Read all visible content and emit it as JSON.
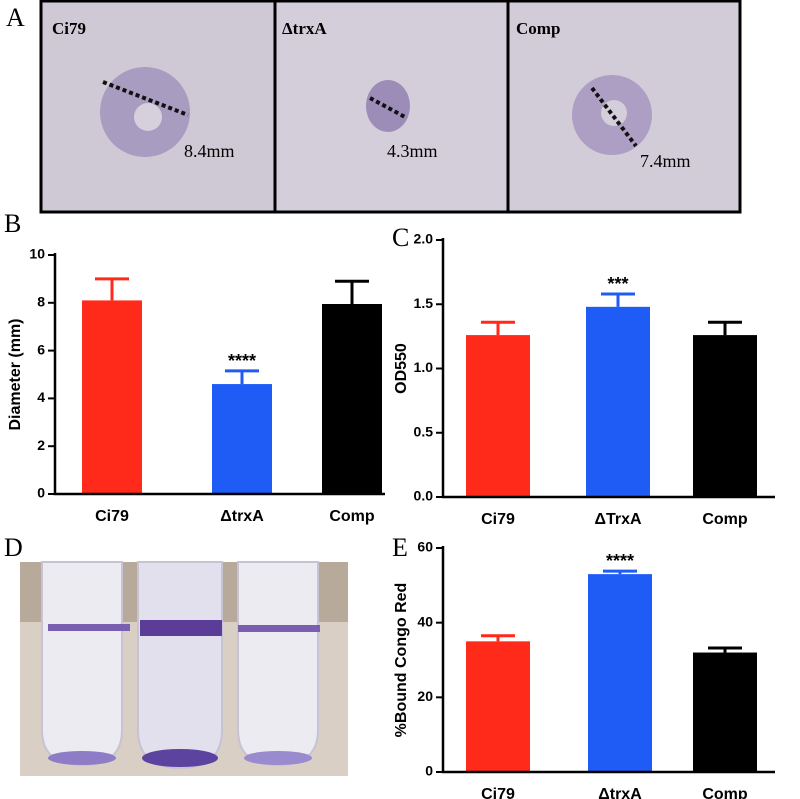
{
  "panel_a": {
    "label": "A",
    "images": [
      {
        "name": "Ci79",
        "measurement": "8.4mm"
      },
      {
        "name": "ΔtrxA",
        "measurement": "4.3mm"
      },
      {
        "name": "Comp",
        "measurement": "7.4mm"
      }
    ]
  },
  "panel_d": {
    "label": "D"
  },
  "chart_data": [
    {
      "type": "bar",
      "label": "B",
      "ylabel": "Diameter (mm)",
      "categories": [
        "Ci79",
        "ΔtrxA",
        "Comp"
      ],
      "values": [
        8.1,
        4.6,
        7.95
      ],
      "errors": [
        0.9,
        0.55,
        0.95
      ],
      "significance": [
        null,
        "****",
        null
      ],
      "colors": [
        "#ff2a1a",
        "#1f5cf5",
        "#000000"
      ],
      "ylim": [
        0,
        10
      ],
      "yticks": [
        0,
        2,
        4,
        6,
        8,
        10
      ]
    },
    {
      "type": "bar",
      "label": "C",
      "ylabel": "OD550",
      "categories": [
        "Ci79",
        "ΔTrxA",
        "Comp"
      ],
      "values": [
        1.26,
        1.48,
        1.26
      ],
      "errors": [
        0.1,
        0.1,
        0.1
      ],
      "significance": [
        null,
        "***",
        null
      ],
      "colors": [
        "#ff2a1a",
        "#1f5cf5",
        "#000000"
      ],
      "ylim": [
        0,
        2
      ],
      "yticks": [
        {
          "value": 0,
          "label": "0.0"
        },
        {
          "value": 0.5,
          "label": "0.5"
        },
        {
          "value": 1,
          "label": "1.0"
        },
        {
          "value": 1.5,
          "label": "1.5"
        },
        {
          "value": 2,
          "label": "2.0"
        }
      ]
    },
    {
      "type": "bar",
      "label": "E",
      "ylabel": "%Bound Congo Red",
      "categories": [
        "Ci79",
        "ΔtrxA",
        "Comp"
      ],
      "values": [
        35,
        53,
        32
      ],
      "errors": [
        1.5,
        0.8,
        1.2
      ],
      "significance": [
        null,
        "****",
        null
      ],
      "colors": [
        "#ff2a1a",
        "#1f5cf5",
        "#000000"
      ],
      "ylim": [
        0,
        60
      ],
      "yticks": [
        0,
        20,
        40,
        60
      ]
    }
  ]
}
